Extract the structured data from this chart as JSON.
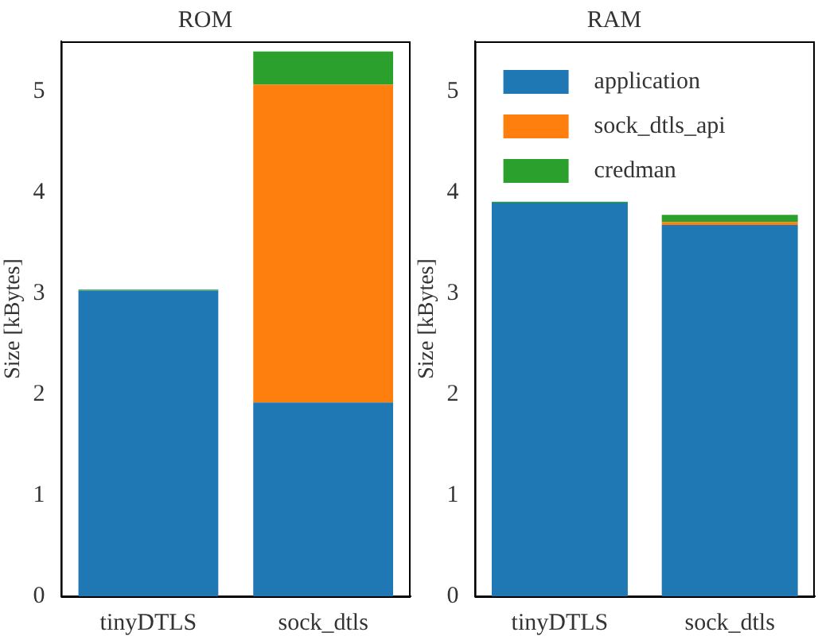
{
  "chart_data": [
    {
      "type": "bar",
      "title": "ROM",
      "ylabel": "Size [kBytes]",
      "categories": [
        "tinyDTLS",
        "sock_dtls"
      ],
      "stacked": true,
      "ylim": [
        0,
        5.5
      ],
      "yticks": [
        0,
        1,
        2,
        3,
        4,
        5
      ],
      "grid": false,
      "legend": false,
      "series": [
        {
          "color": "#1f77b4",
          "values": [
            3.03,
            1.92
          ]
        },
        {
          "color": "#ff7f0e",
          "values": [
            0,
            3.15
          ]
        },
        {
          "color": "#2ca02c",
          "values": [
            0.01,
            0.33
          ]
        }
      ]
    },
    {
      "type": "bar",
      "title": "RAM",
      "ylabel": "Size [kBytes]",
      "categories": [
        "tinyDTLS",
        "sock_dtls"
      ],
      "stacked": true,
      "ylim": [
        0,
        5.5
      ],
      "yticks": [
        0,
        1,
        2,
        3,
        4,
        5
      ],
      "grid": false,
      "legend": "top left",
      "series": [
        {
          "name": "application",
          "color": "#1f77b4",
          "values": [
            3.9,
            3.68
          ]
        },
        {
          "name": "sock_dtls_api",
          "color": "#ff7f0e",
          "values": [
            0,
            0.03
          ]
        },
        {
          "name": "credman",
          "color": "#2ca02c",
          "values": [
            0.01,
            0.07
          ]
        }
      ]
    }
  ]
}
